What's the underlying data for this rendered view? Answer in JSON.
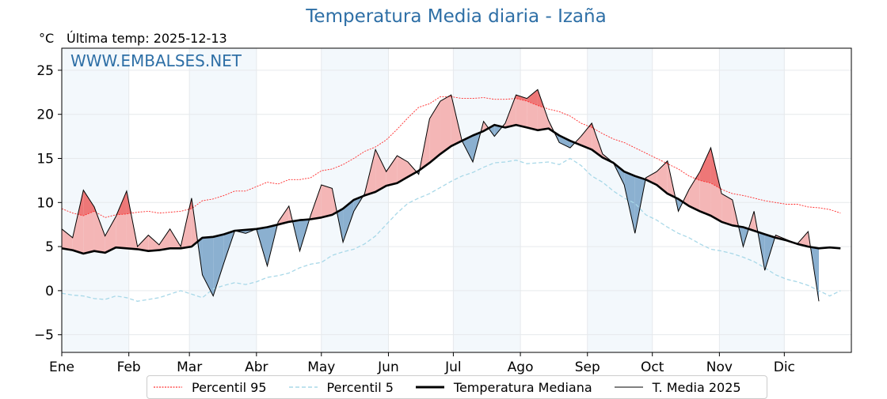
{
  "header": {
    "title": "Temperatura Media diaria - Izaña",
    "unit": "°C",
    "last_temp": "Última temp: 2025-12-13",
    "watermark": "WWW.EMBALSES.NET"
  },
  "legend": [
    {
      "label": "Percentil 95",
      "color": "#ff0000",
      "style": "dotted"
    },
    {
      "label": "Percentil 5",
      "color": "#a8d8e8",
      "style": "dashed"
    },
    {
      "label": "Temperatura Mediana",
      "color": "#000000",
      "style": "thick"
    },
    {
      "label": "T. Media 2025",
      "color": "#000000",
      "style": "thin"
    }
  ],
  "chart_data": {
    "type": "line",
    "title": "Temperatura Media diaria - Izaña",
    "xlabel": "",
    "ylabel": "°C",
    "ylim": [
      -7,
      27.5
    ],
    "xlim_days": [
      0,
      365
    ],
    "yticks": [
      -5,
      0,
      5,
      10,
      15,
      20,
      25
    ],
    "month_ticks": [
      "Ene",
      "Feb",
      "Mar",
      "Abr",
      "May",
      "Jun",
      "Jul",
      "Ago",
      "Sep",
      "Oct",
      "Nov",
      "Dic"
    ],
    "month_start_days": [
      0,
      31,
      59,
      90,
      120,
      151,
      181,
      212,
      243,
      273,
      304,
      334
    ],
    "grid": true,
    "legend_position": "bottom",
    "sample_step_days": 5,
    "fill_above_color": "#f08080",
    "fill_below_color": "#4a7fb5",
    "series": [
      {
        "name": "Percentil 95",
        "values": [
          9.3,
          8.8,
          8.5,
          9.0,
          8.3,
          8.6,
          8.7,
          8.9,
          9.0,
          8.8,
          8.9,
          9.0,
          9.3,
          10.2,
          10.4,
          10.8,
          11.3,
          11.3,
          11.8,
          12.3,
          12.1,
          12.6,
          12.6,
          12.8,
          13.6,
          13.8,
          14.3,
          15.0,
          15.8,
          16.3,
          17.1,
          18.3,
          19.6,
          20.8,
          21.2,
          22.0,
          22.0,
          21.8,
          21.8,
          21.9,
          21.7,
          21.7,
          21.8,
          21.5,
          21.0,
          20.6,
          20.3,
          19.8,
          19.0,
          18.5,
          17.8,
          17.2,
          16.8,
          16.2,
          15.6,
          15.0,
          14.4,
          13.8,
          13.0,
          12.5,
          12.2,
          11.5,
          11.0,
          10.8,
          10.5,
          10.2,
          10.0,
          9.8,
          9.8,
          9.5,
          9.4,
          9.2,
          8.8
        ]
      },
      {
        "name": "Percentil 5",
        "values": [
          -0.3,
          -0.5,
          -0.6,
          -0.9,
          -1.0,
          -0.6,
          -0.8,
          -1.2,
          -1.0,
          -0.8,
          -0.4,
          0.0,
          -0.4,
          -0.8,
          0.2,
          0.6,
          0.9,
          0.7,
          1.0,
          1.5,
          1.7,
          2.0,
          2.6,
          3.0,
          3.2,
          4.0,
          4.4,
          4.7,
          5.3,
          6.2,
          7.5,
          8.8,
          9.9,
          10.5,
          11.0,
          11.7,
          12.4,
          13.0,
          13.4,
          14.0,
          14.5,
          14.6,
          14.8,
          14.4,
          14.5,
          14.6,
          14.3,
          15.0,
          14.2,
          13.0,
          12.3,
          11.3,
          10.5,
          9.9,
          8.6,
          8.0,
          7.2,
          6.5,
          6.0,
          5.3,
          4.7,
          4.5,
          4.2,
          3.8,
          3.3,
          2.6,
          1.8,
          1.3,
          1.0,
          0.6,
          0.0,
          -0.6,
          0.0
        ]
      },
      {
        "name": "Temperatura Mediana",
        "values": [
          4.8,
          4.6,
          4.2,
          4.5,
          4.3,
          4.9,
          4.8,
          4.7,
          4.5,
          4.6,
          4.8,
          4.8,
          5.0,
          6.0,
          6.1,
          6.4,
          6.8,
          6.9,
          7.0,
          7.2,
          7.5,
          7.8,
          8.0,
          8.1,
          8.3,
          8.6,
          9.3,
          10.3,
          10.8,
          11.2,
          11.9,
          12.2,
          12.9,
          13.6,
          14.5,
          15.5,
          16.4,
          17.0,
          17.6,
          18.1,
          18.8,
          18.5,
          18.8,
          18.5,
          18.2,
          18.4,
          17.6,
          17.0,
          16.5,
          16.0,
          15.1,
          14.5,
          13.5,
          13.0,
          12.6,
          12.0,
          11.0,
          10.4,
          9.6,
          9.0,
          8.5,
          7.8,
          7.4,
          7.2,
          6.8,
          6.4,
          6.0,
          5.7,
          5.3,
          5.0,
          4.8,
          4.9,
          4.8
        ]
      },
      {
        "name": "T. Media 2025",
        "values": [
          7.0,
          6.0,
          11.4,
          9.5,
          6.2,
          8.4,
          11.3,
          5.0,
          6.3,
          5.2,
          7.0,
          5.0,
          10.5,
          1.8,
          -0.6,
          3.2,
          6.8,
          6.5,
          7.0,
          2.8,
          7.8,
          9.6,
          4.5,
          8.5,
          12.0,
          11.6,
          5.5,
          9.0,
          11.0,
          16.0,
          13.5,
          15.3,
          14.6,
          13.2,
          19.5,
          21.5,
          22.2,
          17.0,
          14.6,
          19.2,
          17.5,
          19.0,
          22.2,
          21.8,
          22.8,
          19.3,
          16.8,
          16.2,
          17.5,
          19.0,
          15.5,
          14.5,
          12.0,
          6.5,
          12.8,
          13.5,
          14.7,
          9.0,
          11.5,
          13.5,
          16.2,
          11.0,
          10.3,
          5.0,
          9.0,
          2.3,
          6.3,
          5.8,
          5.3,
          6.7,
          -1.2,
          null,
          null
        ]
      }
    ]
  }
}
